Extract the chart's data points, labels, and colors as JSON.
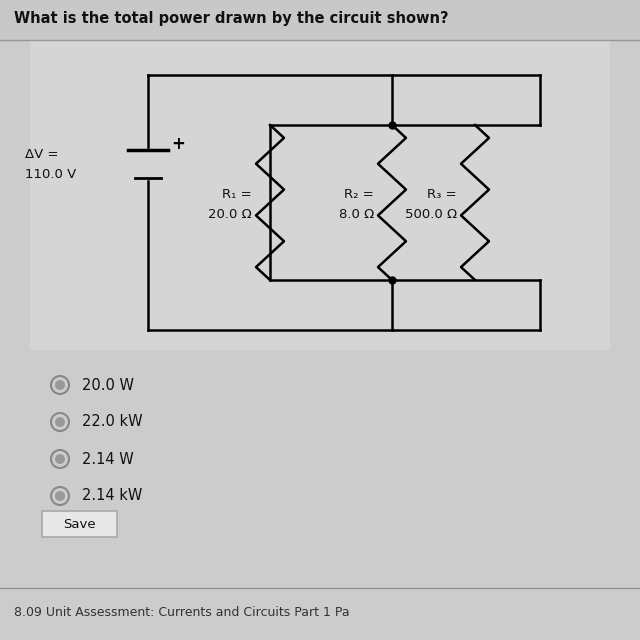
{
  "title": "What is the total power drawn by the circuit shown?",
  "bg_color": "#cccccc",
  "circuit_bg": "#d8d8d8",
  "voltage_label_line1": "ΔV =",
  "voltage_label_line2": "110.0 V",
  "r1_label_line1": "R₁ =",
  "r1_label_line2": "20.0 Ω",
  "r2_label_line1": "R₂ =",
  "r2_label_line2": "8.0 Ω",
  "r3_label_line1": "R₃ =",
  "r3_label_line2": "500.0 Ω",
  "choices": [
    "20.0 W",
    "22.0 kW",
    "2.14 W",
    "2.14 kW"
  ],
  "save_button": "Save",
  "footer": "8.09 Unit Assessment: Currents and Circuits Part 1 Pa",
  "text_color": "#111111",
  "lw": 1.8
}
